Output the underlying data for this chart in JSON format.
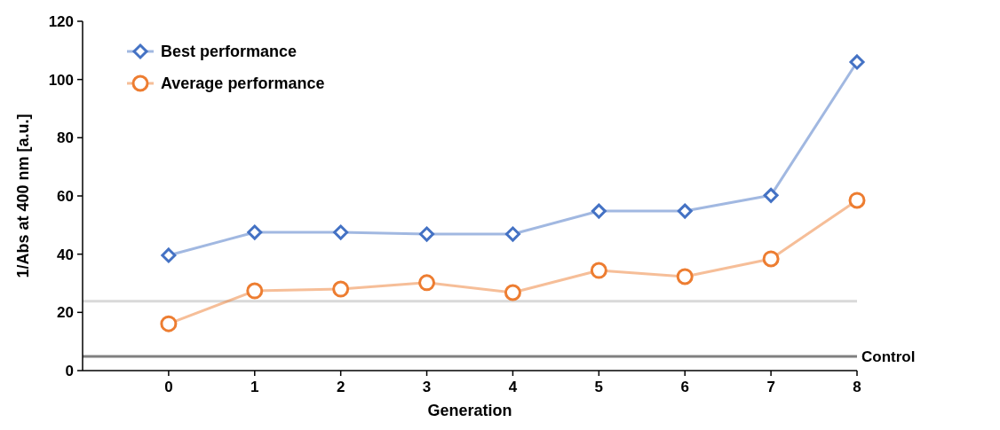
{
  "chart_data": {
    "type": "line",
    "xlabel": "Generation",
    "ylabel": "1/Abs at 400 nm [a.u.]",
    "x": [
      0,
      1,
      2,
      3,
      4,
      5,
      6,
      7,
      8
    ],
    "xlim": [
      -1,
      8
    ],
    "xticks": [
      0,
      1,
      2,
      3,
      4,
      5,
      6,
      7,
      8
    ],
    "ylim": [
      0,
      120
    ],
    "yticks": [
      0,
      20,
      40,
      60,
      80,
      100,
      120
    ],
    "grid": false,
    "legend": "top left",
    "series": [
      {
        "name": "Best performance",
        "color": "#4472c4",
        "marker": "diamond",
        "values": [
          39.6,
          47.5,
          47.5,
          46.9,
          46.9,
          54.8,
          54.8,
          60.2,
          106
        ]
      },
      {
        "name": "Average performance",
        "color": "#ed7d31",
        "marker": "circle",
        "values": [
          16.1,
          27.4,
          28,
          30.2,
          26.8,
          34.4,
          32.3,
          38.4,
          58.5
        ]
      }
    ],
    "ref_lines": [
      {
        "axis": "y",
        "value": 23.8,
        "label": null,
        "color": "#d9d9d9"
      },
      {
        "axis": "y",
        "value": 4.9,
        "label": "Control",
        "color": "#808080"
      }
    ]
  }
}
